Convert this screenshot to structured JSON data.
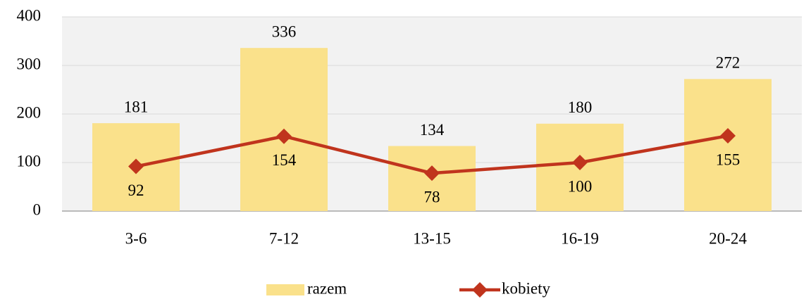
{
  "chart_data": {
    "type": "bar",
    "categories": [
      "3-6",
      "7-12",
      "13-15",
      "16-19",
      "20-24"
    ],
    "series": [
      {
        "name": "razem",
        "type": "bar",
        "color": "#fae18b",
        "values": [
          181,
          336,
          134,
          180,
          272
        ]
      },
      {
        "name": "kobiety",
        "type": "line",
        "color": "#c0341d",
        "values": [
          92,
          154,
          78,
          100,
          155
        ]
      }
    ],
    "ylim": [
      0,
      400
    ],
    "yticks": [
      0,
      100,
      200,
      300,
      400
    ],
    "grid": true,
    "legend": "bottom"
  }
}
